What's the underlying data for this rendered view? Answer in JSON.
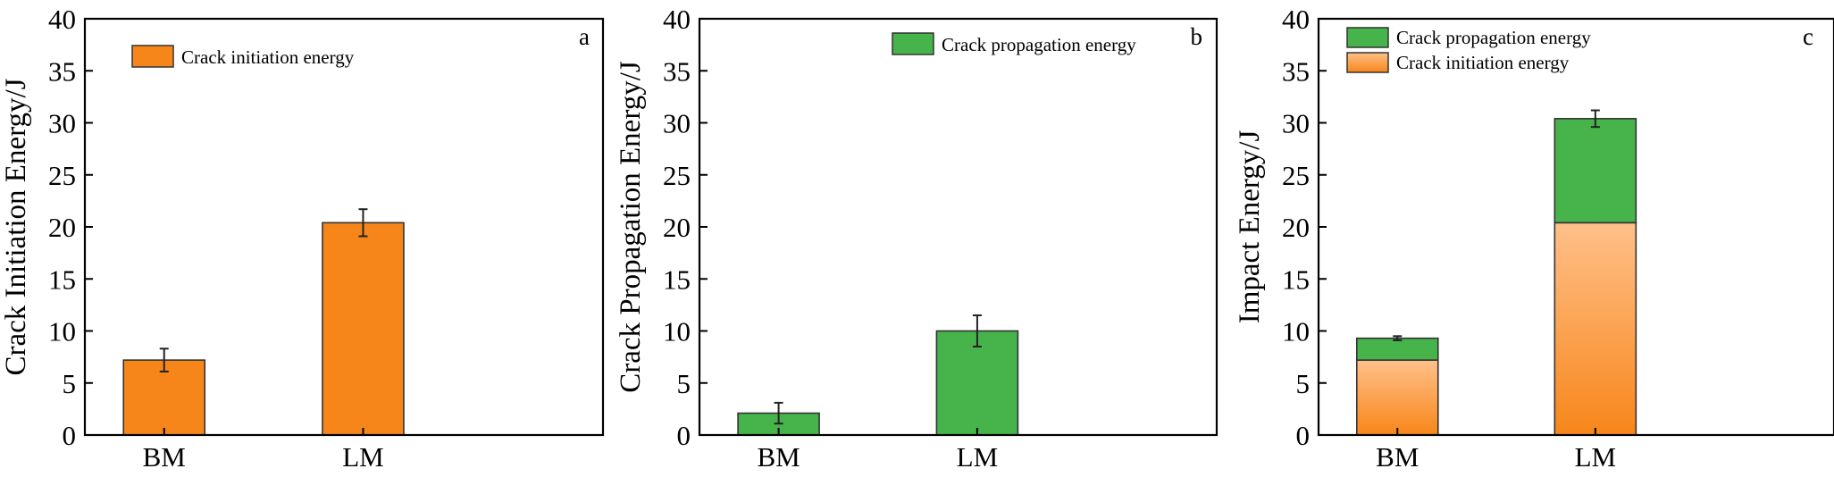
{
  "colors": {
    "orange": "#F7861A",
    "green": "#46B34B",
    "orange_light": "#FDB87A",
    "edge": "#333333"
  },
  "chart_data": [
    {
      "type": "bar",
      "panel": "a",
      "categories": [
        "BM",
        "LM"
      ],
      "ylabel": "Crack Initiation Energy/J",
      "ylim": [
        0,
        40
      ],
      "yticks": [
        0,
        5,
        10,
        15,
        20,
        25,
        30,
        35,
        40
      ],
      "legend_position": "top-left",
      "series": [
        {
          "name": "Crack initiation energy",
          "color": "#F7861A",
          "values": [
            7.2,
            20.4
          ],
          "errors": [
            1.1,
            1.3
          ]
        }
      ]
    },
    {
      "type": "bar",
      "panel": "b",
      "categories": [
        "BM",
        "LM"
      ],
      "ylabel": "Crack Propagation Energy/J",
      "ylim": [
        0,
        40
      ],
      "yticks": [
        0,
        5,
        10,
        15,
        20,
        25,
        30,
        35,
        40
      ],
      "legend_position": "top-right",
      "series": [
        {
          "name": "Crack propagation energy",
          "color": "#46B34B",
          "values": [
            2.1,
            10.0
          ],
          "errors": [
            1.0,
            1.5
          ]
        }
      ]
    },
    {
      "type": "bar",
      "stacked": true,
      "panel": "c",
      "categories": [
        "BM",
        "LM"
      ],
      "ylabel": "Impact Energy/J",
      "ylim": [
        0,
        40
      ],
      "yticks": [
        0,
        5,
        10,
        15,
        20,
        25,
        30,
        35,
        40
      ],
      "legend_position": "top-left",
      "series": [
        {
          "name": "Crack initiation energy",
          "color": "#F7861A",
          "values": [
            7.2,
            20.4
          ],
          "errors": [
            0,
            0
          ]
        },
        {
          "name": "Crack propagation energy",
          "color": "#46B34B",
          "values": [
            2.1,
            10.0
          ],
          "errors": [
            0.2,
            0.8
          ]
        }
      ]
    }
  ]
}
